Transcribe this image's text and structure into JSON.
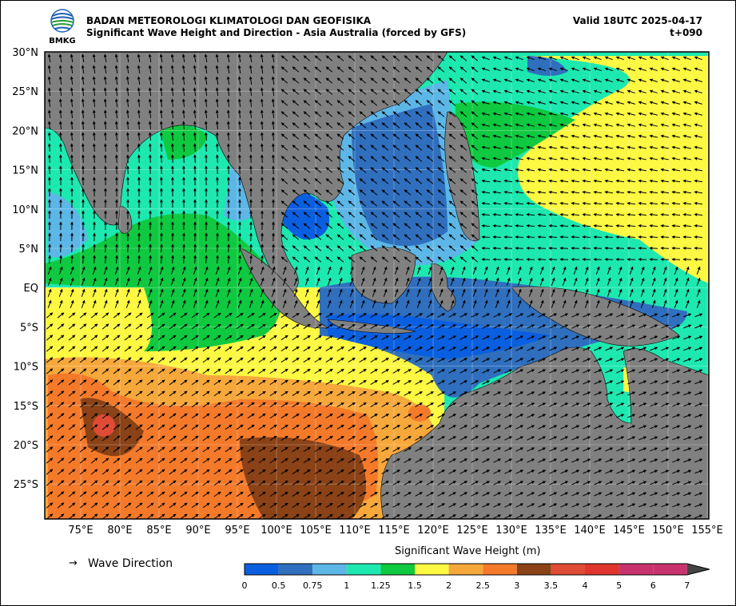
{
  "header": {
    "agency": "BADAN METEOROLOGI KLIMATOLOGI DAN GEOFISIKA",
    "subtitle": "Significant Wave Height and Direction - Asia Australia (forced by GFS)",
    "valid": "Valid 18UTC 2025-04-17",
    "forecast_step": "t+090",
    "logo_text": "BMKG"
  },
  "map": {
    "lat_labels": [
      "30°N",
      "25°N",
      "20°N",
      "15°N",
      "10°N",
      "5°N",
      "EQ",
      "5°S",
      "10°S",
      "15°S",
      "20°S",
      "25°S"
    ],
    "lon_labels": [
      "75°E",
      "80°E",
      "85°E",
      "90°E",
      "95°E",
      "100°E",
      "105°E",
      "110°E",
      "115°E",
      "120°E",
      "125°E",
      "130°E",
      "135°E",
      "140°E",
      "145°E",
      "150°E",
      "155°E"
    ],
    "land_color": "#808080",
    "ocean_colors": {
      "swh_0_0_5": "#0a5fe0",
      "swh_0_5_0_75": "#2f6fbe",
      "swh_0_75_1": "#5cb6e6",
      "swh_1_1_25": "#1de8b0",
      "swh_1_25_1_5": "#0fc940",
      "swh_1_5_2": "#fdf842",
      "swh_2_2_5": "#f7a83b",
      "swh_2_5_3": "#f47a2a",
      "swh_3_3_5": "#8a4216",
      "swh_3_5_4": "#e04b36"
    }
  },
  "legend": {
    "arrow_symbol": "→",
    "wave_direction_label": "Wave Direction"
  },
  "colorbar": {
    "title": "Significant Wave Height (m)",
    "ticks": [
      "0",
      "0.5",
      "0.75",
      "1",
      "1.25",
      "1.5",
      "2",
      "2.5",
      "3",
      "3.5",
      "4",
      "5",
      "6",
      "7"
    ],
    "colors": [
      "#0a5fe0",
      "#2f6fbe",
      "#5cb6e6",
      "#1de8b0",
      "#0fc940",
      "#fdf842",
      "#f7a83b",
      "#f47a2a",
      "#8a4216",
      "#e04b36",
      "#e0352c",
      "#c8336e",
      "#c8336e"
    ]
  }
}
